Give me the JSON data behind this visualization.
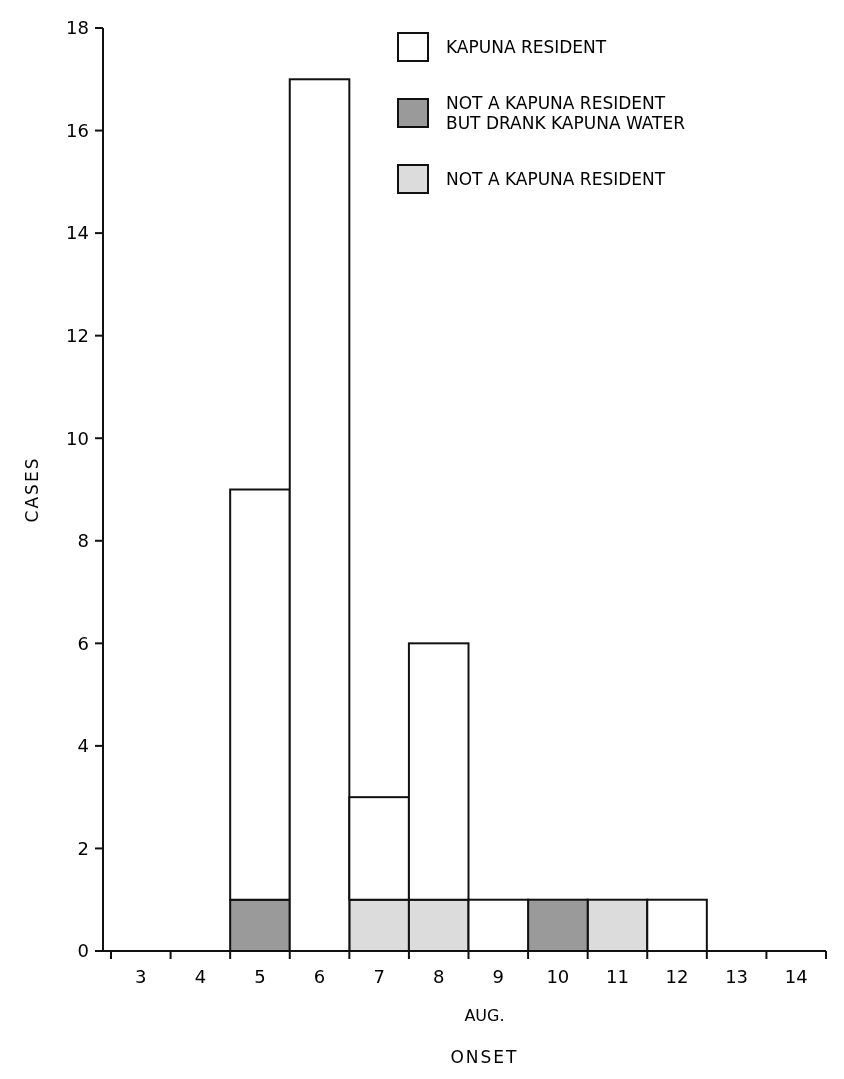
{
  "chart_data": {
    "type": "bar",
    "stacked": true,
    "xlabel": "ONSET",
    "ylabel": "CASES",
    "annotations": [
      "AUG."
    ],
    "categories": [
      "3",
      "4",
      "5",
      "6",
      "7",
      "8",
      "9",
      "10",
      "11",
      "12",
      "13",
      "14"
    ],
    "series": [
      {
        "name": "NOT A KAPUNA RESIDENT",
        "color": "#dcdcdc",
        "values": [
          0,
          0,
          0,
          0,
          1,
          1,
          0,
          0,
          1,
          0,
          0,
          0
        ]
      },
      {
        "name": "NOT A KAPUNA RESIDENT\nBUT DRANK KAPUNA WATER",
        "color": "#9a9a9a",
        "values": [
          0,
          0,
          1,
          0,
          0,
          0,
          0,
          1,
          0,
          0,
          0,
          0
        ]
      },
      {
        "name": "KAPUNA RESIDENT",
        "color": "#ffffff",
        "values": [
          0,
          0,
          8,
          17,
          2,
          5,
          1,
          0,
          0,
          1,
          0,
          0
        ]
      }
    ],
    "legend": "top right",
    "grid": false,
    "ylim": [
      0,
      18
    ],
    "yticks": [
      0,
      2,
      4,
      6,
      8,
      10,
      12,
      14,
      16,
      18
    ]
  }
}
